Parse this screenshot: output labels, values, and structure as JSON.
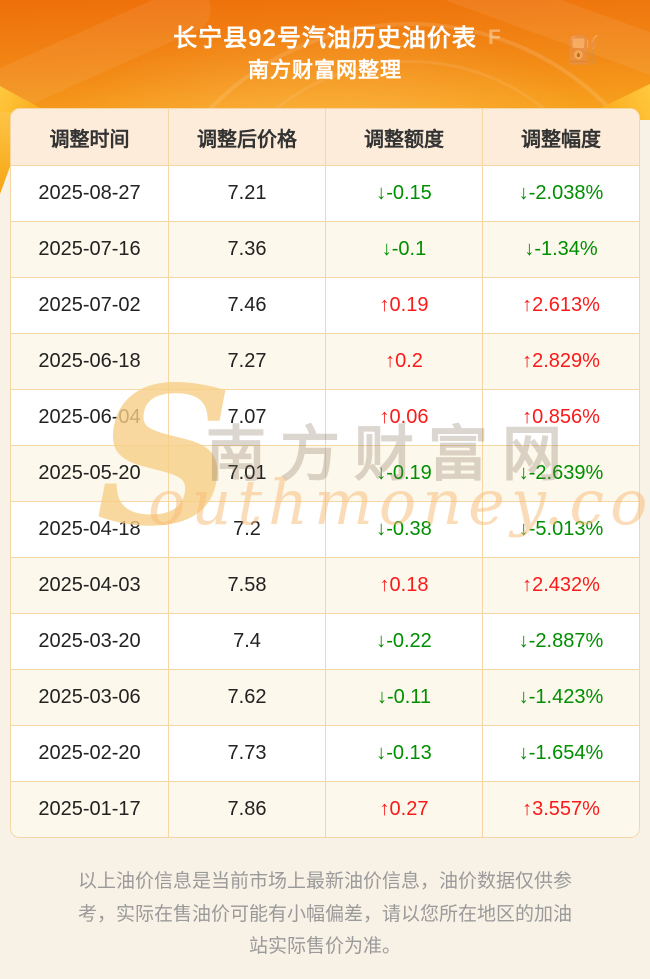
{
  "header": {
    "title": "长宁县92号汽油历史油价表",
    "subtitle": "南方财富网整理",
    "gauge_f_label": "F",
    "icons": {
      "fuel_pump": "⛽"
    }
  },
  "table": {
    "columns": [
      "调整时间",
      "调整后价格",
      "调整额度",
      "调整幅度"
    ],
    "rows": [
      {
        "date": "2025-08-27",
        "price": "7.21",
        "change": "↓-0.15",
        "pct": "↓-2.038%",
        "dir": "down"
      },
      {
        "date": "2025-07-16",
        "price": "7.36",
        "change": "↓-0.1",
        "pct": "↓-1.34%",
        "dir": "down"
      },
      {
        "date": "2025-07-02",
        "price": "7.46",
        "change": "↑0.19",
        "pct": "↑2.613%",
        "dir": "up"
      },
      {
        "date": "2025-06-18",
        "price": "7.27",
        "change": "↑0.2",
        "pct": "↑2.829%",
        "dir": "up"
      },
      {
        "date": "2025-06-04",
        "price": "7.07",
        "change": "↑0.06",
        "pct": "↑0.856%",
        "dir": "up"
      },
      {
        "date": "2025-05-20",
        "price": "7.01",
        "change": "↓-0.19",
        "pct": "↓-2.639%",
        "dir": "down"
      },
      {
        "date": "2025-04-18",
        "price": "7.2",
        "change": "↓-0.38",
        "pct": "↓-5.013%",
        "dir": "down"
      },
      {
        "date": "2025-04-03",
        "price": "7.58",
        "change": "↑0.18",
        "pct": "↑2.432%",
        "dir": "up"
      },
      {
        "date": "2025-03-20",
        "price": "7.4",
        "change": "↓-0.22",
        "pct": "↓-2.887%",
        "dir": "down"
      },
      {
        "date": "2025-03-06",
        "price": "7.62",
        "change": "↓-0.11",
        "pct": "↓-1.423%",
        "dir": "down"
      },
      {
        "date": "2025-02-20",
        "price": "7.73",
        "change": "↓-0.13",
        "pct": "↓-1.654%",
        "dir": "down"
      },
      {
        "date": "2025-01-17",
        "price": "7.86",
        "change": "↑0.27",
        "pct": "↑3.557%",
        "dir": "up"
      }
    ]
  },
  "watermark": {
    "s_glyph": "S",
    "cn_text": "南方财富网",
    "en_text": "outhmoney.com"
  },
  "footer": {
    "disclaimer": "以上油价信息是当前市场上最新油价信息，油价数据仅供参考，实际在售油价可能有小幅偏差，请以您所在地区的加油站实际售价为准。"
  },
  "colors": {
    "page_bg": "#f8f1e6",
    "hero_top": "#ee6f0a",
    "hero_mid": "#f28a16",
    "hero_bottom": "#f9a71f",
    "header_cell_bg": "#fcecd9",
    "row_alt_bg": "#fdf8ec",
    "table_border": "#f7d6a6",
    "cell_text": "#222222",
    "up_red": "#fb1a1a",
    "down_green": "#008f00",
    "footer_text": "#9a9a9a"
  }
}
